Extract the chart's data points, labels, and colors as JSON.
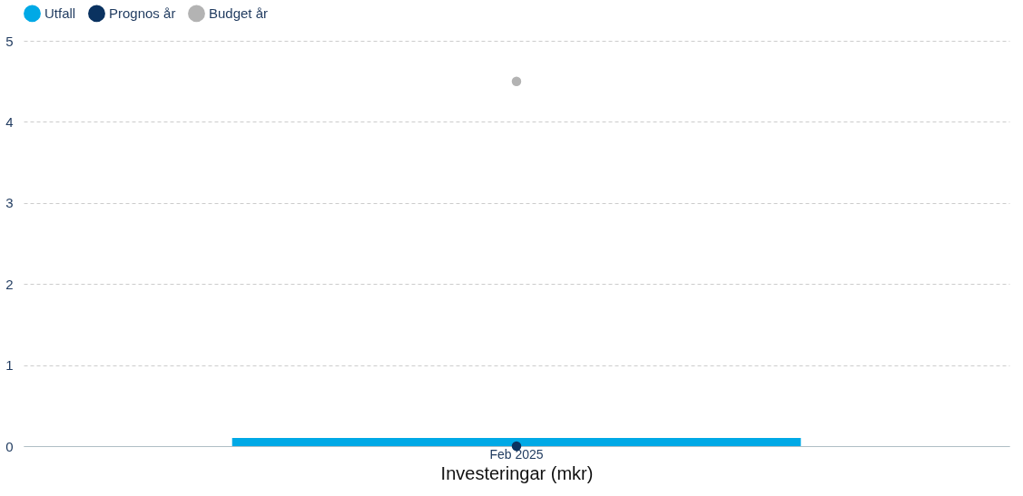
{
  "chart_data": {
    "type": "bar",
    "xlabel": "Investeringar (mkr)",
    "categories": [
      "Feb 2025"
    ],
    "series": [
      {
        "name": "Utfall",
        "color": "#00a9e6",
        "values": [
          0.1
        ]
      },
      {
        "name": "Prognos år",
        "type": "line",
        "color": "#0a3260",
        "values": [
          0
        ],
        "marker": "circle"
      },
      {
        "name": "Budget år",
        "type": "line",
        "color": "#b3b3b3",
        "values": [
          4.5
        ],
        "marker": "circle"
      }
    ],
    "ylim": [
      0,
      5
    ],
    "yticks": [
      0,
      1,
      2,
      3,
      4,
      5
    ],
    "grid": "y",
    "legend": "top left"
  }
}
